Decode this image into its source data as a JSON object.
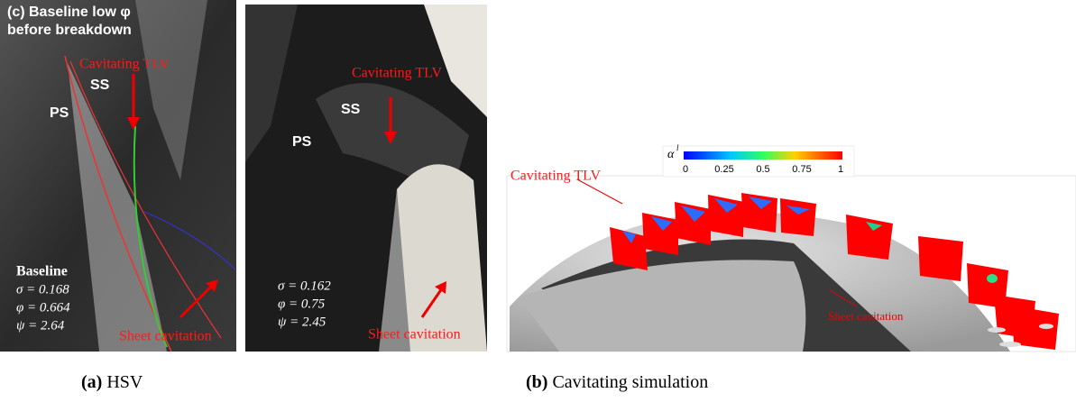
{
  "panel_hsv_left": {
    "title_lines": [
      "(c) Baseline low φ",
      "before breakdown"
    ],
    "tlv_label": "Cavitating TLV",
    "ss_label": "SS",
    "ps_label": "PS",
    "params": [
      "Baseline",
      "σ = 0.168",
      "φ = 0.664",
      "ψ = 2.64"
    ],
    "sheet_label": "Sheet cavitation"
  },
  "panel_hsv_right": {
    "tlv_label": "Cavitating TLV",
    "ss_label": "SS",
    "ps_label": "PS",
    "params": [
      "σ = 0.162",
      "φ = 0.75",
      "ψ = 2.45"
    ],
    "sheet_label": "Sheet cavitation"
  },
  "panel_sim": {
    "colorbar_label": "α",
    "colorbar_superscript": "l",
    "colorbar_ticks": [
      "0",
      "0.25",
      "0.5",
      "0.75",
      "1"
    ],
    "tlv_label": "Cavitating TLV",
    "sheet_label": "Sheet cavitation"
  },
  "captions": [
    {
      "label": "(a)",
      "text": "HSV"
    },
    {
      "label": "(b)",
      "text": "Cavitating simulation"
    }
  ]
}
